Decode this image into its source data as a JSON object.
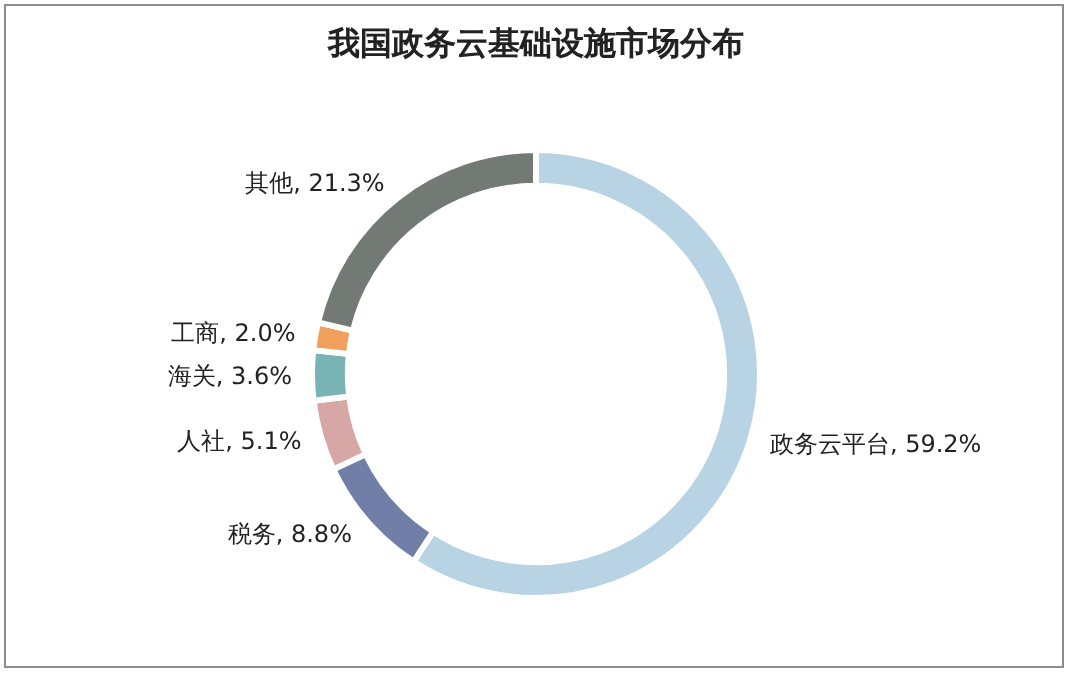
{
  "chart_data": {
    "type": "donut",
    "title": "我国政务云基础设施市场分布",
    "categories": [
      "政务云平台",
      "税务",
      "人社",
      "海关",
      "工商",
      "其他"
    ],
    "values": [
      59.2,
      8.8,
      5.1,
      3.6,
      2.0,
      21.3
    ],
    "value_labels": [
      "59.2%",
      "8.8%",
      "5.1%",
      "3.6%",
      "2.0%",
      "21.3%"
    ],
    "colors": [
      "#b8d3e4",
      "#717ea8",
      "#d6a7a4",
      "#7ab3b3",
      "#f0a05a",
      "#737a76"
    ],
    "legend": false
  }
}
